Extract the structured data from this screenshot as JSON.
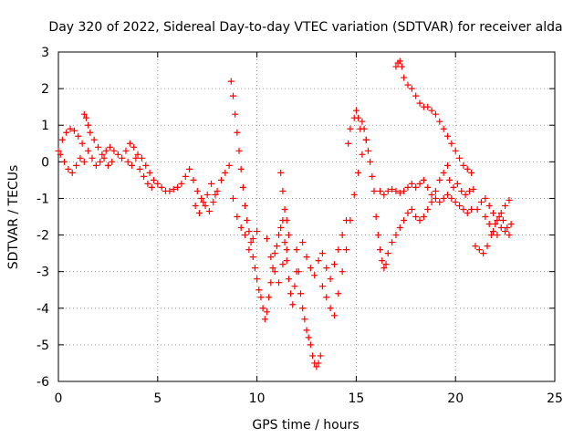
{
  "chart_data": {
    "type": "scatter",
    "title": "Day 320 of 2022, Sidereal Day-to-day VTEC variation (SDTVAR) for receiver alda",
    "xlabel": "GPS time / hours",
    "ylabel": "SDTVAR / TECUs",
    "xlim": [
      0,
      25
    ],
    "ylim": [
      -6,
      3
    ],
    "xticks": [
      "0",
      "5",
      "10",
      "15",
      "20",
      "25"
    ],
    "yticks": [
      "3",
      "2",
      "1",
      "0",
      "-1",
      "-2",
      "-3",
      "-4",
      "-5",
      "-6"
    ],
    "grid": true,
    "marker": "plus",
    "marker_color": "#ff0000",
    "series": [
      {
        "name": "SDTVAR",
        "points": [
          [
            0.0,
            0.3
          ],
          [
            0.2,
            0.6
          ],
          [
            0.4,
            0.8
          ],
          [
            0.6,
            0.9
          ],
          [
            0.8,
            0.85
          ],
          [
            1.0,
            0.7
          ],
          [
            1.2,
            0.5
          ],
          [
            0.1,
            0.2
          ],
          [
            0.3,
            0.0
          ],
          [
            0.5,
            -0.2
          ],
          [
            0.7,
            -0.3
          ],
          [
            0.9,
            -0.1
          ],
          [
            1.1,
            0.1
          ],
          [
            1.3,
            0.0
          ],
          [
            1.3,
            1.3
          ],
          [
            1.4,
            1.2
          ],
          [
            1.5,
            1.0
          ],
          [
            1.6,
            0.8
          ],
          [
            1.8,
            0.6
          ],
          [
            2.0,
            0.4
          ],
          [
            2.2,
            0.2
          ],
          [
            2.4,
            0.3
          ],
          [
            2.6,
            0.4
          ],
          [
            2.8,
            0.3
          ],
          [
            3.0,
            0.2
          ],
          [
            3.2,
            0.1
          ],
          [
            1.5,
            0.3
          ],
          [
            1.7,
            0.1
          ],
          [
            1.9,
            -0.1
          ],
          [
            2.1,
            0.0
          ],
          [
            2.3,
            0.1
          ],
          [
            2.5,
            -0.1
          ],
          [
            2.7,
            0.0
          ],
          [
            3.4,
            0.3
          ],
          [
            3.6,
            0.5
          ],
          [
            3.8,
            0.4
          ],
          [
            4.0,
            0.2
          ],
          [
            4.2,
            0.1
          ],
          [
            4.4,
            -0.1
          ],
          [
            4.6,
            -0.3
          ],
          [
            4.8,
            -0.5
          ],
          [
            5.0,
            -0.6
          ],
          [
            5.2,
            -0.7
          ],
          [
            5.4,
            -0.8
          ],
          [
            5.6,
            -0.8
          ],
          [
            5.8,
            -0.75
          ],
          [
            6.0,
            -0.7
          ],
          [
            6.2,
            -0.6
          ],
          [
            3.5,
            0.0
          ],
          [
            3.7,
            -0.1
          ],
          [
            3.9,
            0.1
          ],
          [
            4.1,
            -0.2
          ],
          [
            4.3,
            -0.4
          ],
          [
            4.5,
            -0.6
          ],
          [
            4.7,
            -0.7
          ],
          [
            6.4,
            -0.4
          ],
          [
            6.6,
            -0.2
          ],
          [
            6.8,
            -0.5
          ],
          [
            7.0,
            -0.8
          ],
          [
            7.2,
            -1.0
          ],
          [
            7.4,
            -1.2
          ],
          [
            7.6,
            -1.35
          ],
          [
            7.8,
            -1.1
          ],
          [
            8.0,
            -0.8
          ],
          [
            8.2,
            -0.5
          ],
          [
            8.4,
            -0.3
          ],
          [
            8.6,
            -0.1
          ],
          [
            6.9,
            -1.2
          ],
          [
            7.1,
            -1.4
          ],
          [
            7.3,
            -1.1
          ],
          [
            7.5,
            -0.9
          ],
          [
            7.7,
            -0.6
          ],
          [
            7.9,
            -0.9
          ],
          [
            8.7,
            2.2
          ],
          [
            8.8,
            1.8
          ],
          [
            8.9,
            1.3
          ],
          [
            9.0,
            0.8
          ],
          [
            9.1,
            0.3
          ],
          [
            9.2,
            -0.2
          ],
          [
            9.3,
            -0.7
          ],
          [
            9.4,
            -1.2
          ],
          [
            9.5,
            -1.6
          ],
          [
            9.6,
            -1.9
          ],
          [
            9.7,
            -2.2
          ],
          [
            9.8,
            -2.6
          ],
          [
            9.9,
            -2.9
          ],
          [
            10.0,
            -3.2
          ],
          [
            10.1,
            -3.5
          ],
          [
            10.2,
            -3.7
          ],
          [
            8.8,
            -1.0
          ],
          [
            9.0,
            -1.5
          ],
          [
            9.2,
            -1.8
          ],
          [
            9.4,
            -2.0
          ],
          [
            9.6,
            -2.4
          ],
          [
            9.8,
            -2.1
          ],
          [
            10.0,
            -1.9
          ],
          [
            10.3,
            -4.0
          ],
          [
            10.4,
            -4.3
          ],
          [
            10.5,
            -4.1
          ],
          [
            10.6,
            -3.7
          ],
          [
            10.7,
            -3.3
          ],
          [
            10.8,
            -2.9
          ],
          [
            10.9,
            -2.5
          ],
          [
            11.0,
            -2.3
          ],
          [
            11.1,
            -2.0
          ],
          [
            11.2,
            -1.8
          ],
          [
            11.3,
            -1.6
          ],
          [
            10.5,
            -2.1
          ],
          [
            10.7,
            -2.6
          ],
          [
            10.9,
            -3.0
          ],
          [
            11.1,
            -3.3
          ],
          [
            11.3,
            -2.8
          ],
          [
            11.5,
            -2.4
          ],
          [
            11.6,
            -2.0
          ],
          [
            11.4,
            -2.2
          ],
          [
            11.5,
            -2.7
          ],
          [
            11.6,
            -3.2
          ],
          [
            11.7,
            -3.6
          ],
          [
            11.8,
            -3.9
          ],
          [
            11.9,
            -3.4
          ],
          [
            12.0,
            -3.0
          ],
          [
            11.2,
            -0.3
          ],
          [
            11.3,
            -0.8
          ],
          [
            11.4,
            -1.3
          ],
          [
            11.5,
            -1.6
          ],
          [
            12.0,
            -2.4
          ],
          [
            12.1,
            -3.0
          ],
          [
            12.2,
            -3.6
          ],
          [
            12.3,
            -4.0
          ],
          [
            12.4,
            -4.3
          ],
          [
            12.5,
            -4.6
          ],
          [
            12.6,
            -4.8
          ],
          [
            12.7,
            -5.0
          ],
          [
            12.8,
            -5.3
          ],
          [
            12.9,
            -5.5
          ],
          [
            13.0,
            -5.6
          ],
          [
            13.1,
            -5.5
          ],
          [
            13.2,
            -5.3
          ],
          [
            12.3,
            -2.2
          ],
          [
            12.5,
            -2.6
          ],
          [
            12.7,
            -2.9
          ],
          [
            12.9,
            -3.1
          ],
          [
            13.1,
            -2.7
          ],
          [
            13.3,
            -2.5
          ],
          [
            13.5,
            -2.9
          ],
          [
            13.7,
            -3.2
          ],
          [
            13.9,
            -2.8
          ],
          [
            14.1,
            -2.4
          ],
          [
            14.3,
            -2.0
          ],
          [
            14.5,
            -1.6
          ],
          [
            13.3,
            -3.4
          ],
          [
            13.5,
            -3.7
          ],
          [
            13.7,
            -4.0
          ],
          [
            13.9,
            -4.2
          ],
          [
            14.1,
            -3.6
          ],
          [
            14.3,
            -3.0
          ],
          [
            14.5,
            -2.4
          ],
          [
            14.7,
            -1.6
          ],
          [
            14.9,
            -0.9
          ],
          [
            15.1,
            -0.3
          ],
          [
            15.3,
            0.2
          ],
          [
            15.5,
            0.6
          ],
          [
            14.6,
            0.5
          ],
          [
            14.7,
            0.9
          ],
          [
            14.9,
            1.2
          ],
          [
            15.0,
            1.4
          ],
          [
            15.1,
            1.2
          ],
          [
            15.2,
            0.9
          ],
          [
            15.3,
            1.1
          ],
          [
            15.4,
            0.9
          ],
          [
            15.5,
            0.6
          ],
          [
            15.6,
            0.3
          ],
          [
            15.7,
            0.0
          ],
          [
            15.8,
            -0.4
          ],
          [
            15.9,
            -0.8
          ],
          [
            16.0,
            -1.5
          ],
          [
            16.1,
            -2.0
          ],
          [
            16.2,
            -2.4
          ],
          [
            16.3,
            -2.7
          ],
          [
            16.4,
            -2.9
          ],
          [
            16.5,
            -2.8
          ],
          [
            16.6,
            -2.5
          ],
          [
            16.8,
            -2.2
          ],
          [
            17.0,
            -2.0
          ],
          [
            17.2,
            -1.8
          ],
          [
            17.4,
            -1.6
          ],
          [
            17.6,
            -1.4
          ],
          [
            16.2,
            -0.8
          ],
          [
            16.4,
            -0.9
          ],
          [
            16.6,
            -0.8
          ],
          [
            16.8,
            -0.75
          ],
          [
            17.0,
            -0.8
          ],
          [
            17.2,
            -0.85
          ],
          [
            17.4,
            -0.8
          ],
          [
            17.6,
            -0.7
          ],
          [
            17.8,
            -0.6
          ],
          [
            17.0,
            2.6
          ],
          [
            17.1,
            2.7
          ],
          [
            17.2,
            2.75
          ],
          [
            17.3,
            2.6
          ],
          [
            17.4,
            2.3
          ],
          [
            17.6,
            2.1
          ],
          [
            17.8,
            2.0
          ],
          [
            18.0,
            1.8
          ],
          [
            18.2,
            1.6
          ],
          [
            18.4,
            1.5
          ],
          [
            18.6,
            1.5
          ],
          [
            18.8,
            1.4
          ],
          [
            19.0,
            1.3
          ],
          [
            19.2,
            1.1
          ],
          [
            19.4,
            0.9
          ],
          [
            19.6,
            0.7
          ],
          [
            19.8,
            0.5
          ],
          [
            20.0,
            0.3
          ],
          [
            20.2,
            0.1
          ],
          [
            20.4,
            -0.1
          ],
          [
            20.6,
            -0.2
          ],
          [
            20.8,
            -0.3
          ],
          [
            17.8,
            -1.3
          ],
          [
            18.0,
            -1.5
          ],
          [
            18.2,
            -1.6
          ],
          [
            18.4,
            -1.5
          ],
          [
            18.6,
            -1.3
          ],
          [
            18.8,
            -1.1
          ],
          [
            19.0,
            -0.8
          ],
          [
            19.2,
            -0.5
          ],
          [
            19.4,
            -0.3
          ],
          [
            19.6,
            -0.1
          ],
          [
            18.0,
            -0.7
          ],
          [
            18.2,
            -0.6
          ],
          [
            18.4,
            -0.5
          ],
          [
            18.6,
            -0.7
          ],
          [
            18.8,
            -0.9
          ],
          [
            19.0,
            -1.0
          ],
          [
            19.2,
            -1.1
          ],
          [
            19.4,
            -1.0
          ],
          [
            19.6,
            -0.9
          ],
          [
            19.8,
            -1.0
          ],
          [
            20.0,
            -1.1
          ],
          [
            20.2,
            -1.2
          ],
          [
            20.4,
            -1.3
          ],
          [
            20.6,
            -1.4
          ],
          [
            20.8,
            -1.3
          ],
          [
            19.7,
            -0.5
          ],
          [
            19.9,
            -0.7
          ],
          [
            20.1,
            -0.6
          ],
          [
            20.3,
            -0.8
          ],
          [
            20.5,
            -0.9
          ],
          [
            20.7,
            -0.8
          ],
          [
            20.9,
            -0.75
          ],
          [
            21.0,
            -2.3
          ],
          [
            21.2,
            -2.4
          ],
          [
            21.4,
            -2.5
          ],
          [
            21.6,
            -2.3
          ],
          [
            21.8,
            -2.0
          ],
          [
            22.0,
            -1.7
          ],
          [
            22.2,
            -1.5
          ],
          [
            22.4,
            -1.6
          ],
          [
            22.6,
            -1.8
          ],
          [
            22.8,
            -1.7
          ],
          [
            21.1,
            -1.3
          ],
          [
            21.3,
            -1.1
          ],
          [
            21.5,
            -1.0
          ],
          [
            21.7,
            -1.2
          ],
          [
            21.9,
            -1.4
          ],
          [
            22.1,
            -1.6
          ],
          [
            22.3,
            -1.4
          ],
          [
            22.5,
            -1.2
          ],
          [
            22.7,
            -1.05
          ],
          [
            21.5,
            -1.5
          ],
          [
            21.7,
            -1.7
          ],
          [
            21.9,
            -1.9
          ],
          [
            22.1,
            -2.0
          ],
          [
            22.3,
            -1.8
          ],
          [
            22.5,
            -1.9
          ],
          [
            22.7,
            -2.0
          ]
        ]
      }
    ]
  }
}
